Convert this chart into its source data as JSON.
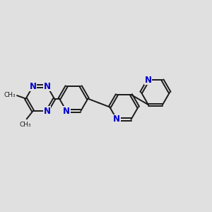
{
  "bg_color": "#e0e0e0",
  "bond_color": "#1a1a1a",
  "N_color": "#0000cc",
  "bond_width": 1.4,
  "font_size_N": 8.5,
  "font_size_me": 6.5,
  "figsize": [
    3.0,
    3.0
  ],
  "dpi": 100,
  "xlim": [
    0,
    10
  ],
  "ylim": [
    0,
    10
  ]
}
